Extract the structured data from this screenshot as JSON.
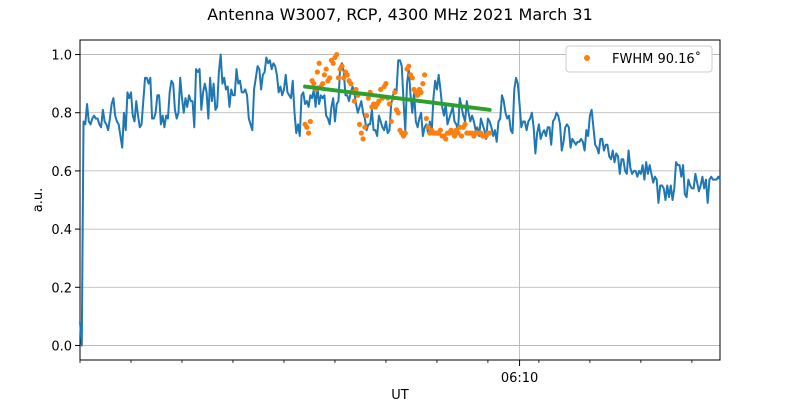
{
  "chart_data": {
    "type": "line",
    "title": "Antenna W3007, RCP, 4300 MHz 2021 March 31",
    "xlabel": "UT",
    "ylabel": "a.u.",
    "x_ticks_major": [
      {
        "x": 250,
        "label": "06:10"
      }
    ],
    "x_minor_ticks": [
      0,
      29,
      58,
      87,
      116,
      145,
      174,
      203,
      232,
      261,
      290,
      319,
      348
    ],
    "xlim": [
      0,
      364
    ],
    "ylim": [
      -0.05,
      1.05
    ],
    "y_ticks": [
      0.0,
      0.2,
      0.4,
      0.6,
      0.8,
      1.0
    ],
    "y_tick_labels": [
      "0.0",
      "0.2",
      "0.4",
      "0.6",
      "0.8",
      "1.0"
    ],
    "grid": true,
    "legend": {
      "position": "top-right",
      "label": "FWHM 90.16$^\\circ$",
      "display_label": "FWHM 90.16˚"
    },
    "colors": {
      "series_main": "#1f77b4",
      "series_points": "#ff7f0e",
      "series_fit": "#2ca02c",
      "grid": "#b0b0b0"
    },
    "series": [
      {
        "style": "line",
        "color": "#1f77b4",
        "x": [
          0,
          1,
          2,
          3,
          4,
          5,
          6,
          7,
          8,
          9,
          10,
          11,
          12,
          13,
          14,
          15,
          16,
          17,
          18,
          19,
          20,
          21,
          22,
          23,
          24,
          25,
          26,
          27,
          28,
          29,
          30,
          31,
          32,
          33,
          34,
          35,
          36,
          37,
          38,
          39,
          40,
          41,
          42,
          43,
          44,
          45,
          46,
          47,
          48,
          49,
          50,
          51,
          52,
          53,
          54,
          55,
          56,
          57,
          58,
          59,
          60,
          61,
          62,
          63,
          64,
          65,
          66,
          67,
          68,
          69,
          70,
          71,
          72,
          73,
          74,
          75,
          76,
          77,
          78,
          79,
          80,
          81,
          82,
          83,
          84,
          85,
          86,
          87,
          88,
          89,
          90,
          91,
          92,
          93,
          94,
          95,
          96,
          97,
          98,
          99,
          100,
          101,
          102,
          103,
          104,
          105,
          106,
          107,
          108,
          109,
          110,
          111,
          112,
          113,
          114,
          115,
          116,
          117,
          118,
          119,
          120,
          121,
          122,
          123,
          124,
          125,
          126,
          127,
          128,
          129,
          130,
          131,
          132,
          133,
          134,
          135,
          136,
          137,
          138,
          139,
          140,
          141,
          142,
          143,
          144,
          145,
          146,
          147,
          148,
          149,
          150,
          151,
          152,
          153,
          154,
          155,
          156,
          157,
          158,
          159,
          160,
          161,
          162,
          163,
          164,
          165,
          166,
          167,
          168,
          169,
          170,
          171,
          172,
          173,
          174,
          175,
          176,
          177,
          178,
          179,
          180,
          181,
          182,
          183,
          184,
          185,
          186,
          187,
          188,
          189,
          190,
          191,
          192,
          193,
          194,
          195,
          196,
          197,
          198,
          199,
          200,
          201,
          202,
          203,
          204,
          205,
          206,
          207,
          208,
          209,
          210,
          211,
          212,
          213,
          214,
          215,
          216,
          217,
          218,
          219,
          220,
          221,
          222,
          223,
          224,
          225,
          226,
          227,
          228,
          229,
          230,
          231,
          232,
          233,
          234,
          235,
          236,
          237,
          238,
          239,
          240,
          241,
          242,
          243,
          244,
          245,
          246,
          247,
          248,
          249,
          250,
          251,
          252,
          253,
          254,
          255,
          256,
          257,
          258,
          259,
          260,
          261,
          262,
          263,
          264,
          265,
          266,
          267,
          268,
          269,
          270,
          271,
          272,
          273,
          274,
          275,
          276,
          277,
          278,
          279,
          280,
          281,
          282,
          283,
          284,
          285,
          286,
          287,
          288,
          289,
          290,
          291,
          292,
          293,
          294,
          295,
          296,
          297,
          298,
          299,
          300,
          301,
          302,
          303,
          304,
          305,
          306,
          307,
          308,
          309,
          310,
          311,
          312,
          313,
          314,
          315,
          316,
          317,
          318,
          319,
          320,
          321,
          322,
          323,
          324,
          325,
          326,
          327,
          328,
          329,
          330,
          331,
          332,
          333,
          334,
          335,
          336,
          337,
          338,
          339,
          340,
          341,
          342,
          343,
          344,
          345,
          346,
          347,
          348,
          349,
          350,
          351,
          352,
          353,
          354,
          355,
          356,
          357,
          358,
          359,
          360,
          361,
          362,
          363,
          364
        ],
        "y": [
          0.08,
          0.0,
          0.77,
          0.76,
          0.83,
          0.77,
          0.76,
          0.78,
          0.79,
          0.78,
          0.78,
          0.76,
          0.75,
          0.81,
          0.77,
          0.76,
          0.74,
          0.78,
          0.83,
          0.85,
          0.79,
          0.77,
          0.76,
          0.72,
          0.68,
          0.8,
          0.74,
          0.87,
          0.85,
          0.87,
          0.79,
          0.77,
          0.84,
          0.79,
          0.75,
          0.76,
          0.84,
          0.92,
          0.92,
          0.9,
          0.92,
          0.78,
          0.78,
          0.8,
          0.86,
          0.86,
          0.76,
          0.79,
          0.75,
          0.79,
          0.78,
          0.87,
          0.91,
          0.9,
          0.81,
          0.78,
          0.8,
          0.92,
          0.85,
          0.8,
          0.85,
          0.82,
          0.86,
          0.84,
          0.84,
          0.75,
          0.95,
          0.94,
          0.95,
          0.81,
          0.87,
          0.9,
          0.87,
          0.78,
          0.92,
          0.84,
          0.9,
          0.81,
          0.82,
          0.94,
          1.0,
          0.9,
          0.92,
          0.88,
          0.89,
          0.82,
          0.88,
          0.86,
          0.86,
          0.95,
          0.9,
          0.91,
          0.87,
          0.87,
          0.88,
          0.86,
          0.78,
          0.76,
          0.74,
          0.88,
          0.92,
          0.96,
          0.95,
          0.88,
          0.93,
          0.94,
          0.99,
          0.97,
          0.98,
          0.95,
          0.97,
          0.96,
          0.93,
          0.87,
          0.89,
          0.86,
          0.88,
          0.93,
          0.87,
          0.86,
          0.85,
          0.91,
          0.8,
          0.73,
          0.76,
          0.72,
          0.86,
          0.87,
          0.83,
          0.84,
          0.82,
          0.86,
          0.85,
          0.88,
          0.82,
          0.89,
          0.83,
          0.86,
          0.85,
          0.86,
          0.79,
          0.78,
          0.76,
          0.82,
          0.85,
          0.77,
          0.83,
          0.84,
          0.96,
          0.97,
          0.94,
          0.86,
          0.86,
          0.84,
          0.87,
          0.89,
          0.87,
          0.83,
          0.8,
          0.82,
          0.84,
          0.8,
          0.78,
          0.74,
          0.76,
          0.76,
          0.81,
          0.74,
          0.74,
          0.72,
          0.79,
          0.77,
          0.75,
          0.74,
          0.77,
          0.73,
          0.74,
          0.83,
          0.86,
          0.88,
          0.87,
          0.98,
          0.98,
          0.96,
          0.84,
          0.74,
          0.9,
          0.95,
          0.86,
          0.8,
          0.87,
          0.77,
          0.75,
          0.78,
          0.8,
          0.72,
          0.75,
          0.76,
          0.73,
          0.77,
          0.73,
          0.85,
          0.91,
          0.88,
          0.93,
          0.88,
          0.82,
          0.79,
          0.83,
          0.76,
          0.78,
          0.8,
          0.82,
          0.77,
          0.76,
          0.74,
          0.85,
          0.82,
          0.79,
          0.77,
          0.84,
          0.8,
          0.77,
          0.79,
          0.77,
          0.74,
          0.75,
          0.72,
          0.78,
          0.76,
          0.74,
          0.71,
          0.78,
          0.77,
          0.75,
          0.72,
          0.74,
          0.7,
          0.77,
          0.78,
          0.86,
          0.84,
          0.8,
          0.78,
          0.79,
          0.74,
          0.73,
          0.88,
          0.92,
          0.9,
          0.83,
          0.75,
          0.77,
          0.77,
          0.74,
          0.77,
          0.78,
          0.8,
          0.75,
          0.66,
          0.73,
          0.76,
          0.71,
          0.73,
          0.74,
          0.72,
          0.75,
          0.75,
          0.69,
          0.77,
          0.78,
          0.8,
          0.79,
          0.76,
          0.67,
          0.7,
          0.75,
          0.76,
          0.75,
          0.68,
          0.71,
          0.7,
          0.69,
          0.7,
          0.7,
          0.71,
          0.7,
          0.67,
          0.74,
          0.72,
          0.79,
          0.81,
          0.75,
          0.69,
          0.68,
          0.66,
          0.71,
          0.71,
          0.67,
          0.69,
          0.69,
          0.65,
          0.64,
          0.67,
          0.63,
          0.66,
          0.65,
          0.59,
          0.64,
          0.64,
          0.6,
          0.59,
          0.67,
          0.61,
          0.59,
          0.6,
          0.6,
          0.58,
          0.6,
          0.59,
          0.62,
          0.57,
          0.63,
          0.59,
          0.62,
          0.59,
          0.56,
          0.58,
          0.57,
          0.49,
          0.55,
          0.55,
          0.54,
          0.5,
          0.55,
          0.51,
          0.55,
          0.5,
          0.54,
          0.63,
          0.62,
          0.62,
          0.58,
          0.62,
          0.52,
          0.51,
          0.57,
          0.55,
          0.54,
          0.54,
          0.59,
          0.56,
          0.53,
          0.55,
          0.58,
          0.54,
          0.57,
          0.49,
          0.57,
          0.58,
          0.57,
          0.57,
          0.57,
          0.58,
          0.57
        ]
      },
      {
        "name": "FWHM 90.16˚",
        "style": "markers",
        "color": "#ff7f0e",
        "x": [
          128,
          129,
          130,
          131,
          132,
          133,
          134,
          135,
          136,
          137,
          138,
          139,
          140,
          141,
          142,
          143,
          144,
          145,
          146,
          147,
          148,
          149,
          150,
          151,
          152,
          153,
          154,
          155,
          156,
          157,
          158,
          159,
          160,
          161,
          162,
          163,
          164,
          165,
          166,
          167,
          168,
          169,
          170,
          171,
          172,
          173,
          174,
          175,
          176,
          177,
          178,
          179,
          180,
          181,
          182,
          183,
          184,
          185,
          186,
          187,
          188,
          189,
          190,
          191,
          192,
          193,
          194,
          195,
          196,
          197,
          198,
          199,
          200,
          201,
          202,
          203,
          204,
          205,
          206,
          207,
          208,
          209,
          210,
          211,
          212,
          213,
          214,
          215,
          216,
          217,
          218,
          219,
          220,
          221,
          222,
          223,
          224,
          225,
          226,
          227,
          228,
          229,
          230,
          231,
          232,
          233
        ],
        "y": [
          0.76,
          0.75,
          0.73,
          0.77,
          0.91,
          0.9,
          0.88,
          0.94,
          0.97,
          0.89,
          0.9,
          0.93,
          0.95,
          0.91,
          0.92,
          0.98,
          0.97,
          0.99,
          1.0,
          0.92,
          0.95,
          0.96,
          0.92,
          0.94,
          0.93,
          0.91,
          0.9,
          0.87,
          0.84,
          0.88,
          0.86,
          0.76,
          0.73,
          0.71,
          0.75,
          0.79,
          0.85,
          0.87,
          0.82,
          0.83,
          0.82,
          0.83,
          0.84,
          0.88,
          0.85,
          0.89,
          0.9,
          0.85,
          0.83,
          0.77,
          0.85,
          0.87,
          0.81,
          0.8,
          0.74,
          0.73,
          0.72,
          0.73,
          0.95,
          0.96,
          0.93,
          0.92,
          0.88,
          0.87,
          0.86,
          0.88,
          0.87,
          0.9,
          0.93,
          0.78,
          0.75,
          0.73,
          0.74,
          0.73,
          0.73,
          0.73,
          0.73,
          0.74,
          0.72,
          0.72,
          0.71,
          0.73,
          0.73,
          0.74,
          0.73,
          0.72,
          0.74,
          0.73,
          0.75,
          0.72,
          0.75,
          0.76,
          0.73,
          0.73,
          0.73,
          0.73,
          0.72,
          0.73,
          0.73,
          0.73,
          0.73,
          0.72,
          0.72,
          0.72,
          0.73,
          0.73
        ]
      },
      {
        "style": "line-thick",
        "color": "#2ca02c",
        "x": [
          128,
          233
        ],
        "y": [
          0.89,
          0.81
        ]
      }
    ]
  }
}
